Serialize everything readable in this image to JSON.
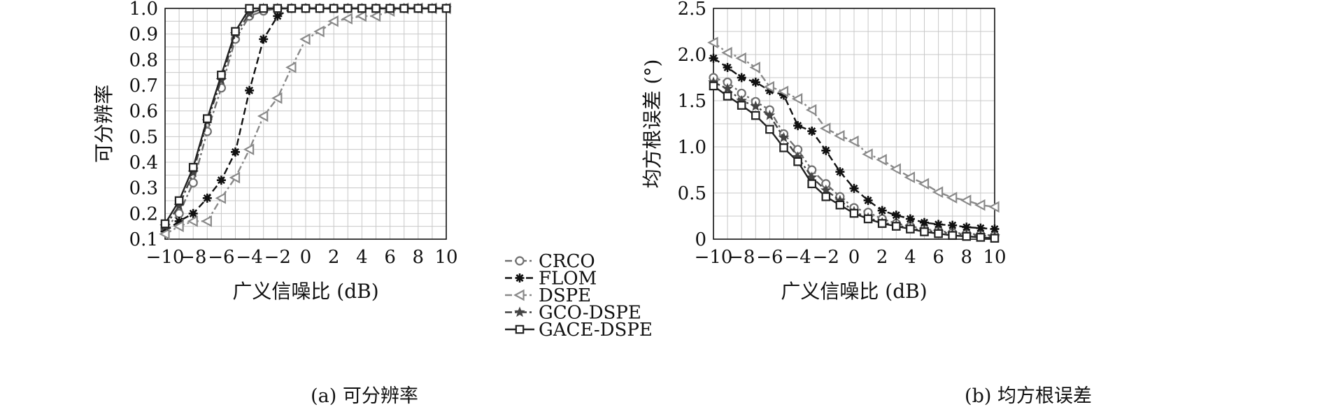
{
  "figure": {
    "caption_a": "(a) 可分辨率",
    "caption_b": "(b) 均方根误差"
  },
  "legend": {
    "entries": [
      "CRCO",
      "FLOM",
      "DSPE",
      "GCO-DSPE",
      "GACE-DSPE"
    ]
  },
  "chart_data": [
    {
      "type": "line",
      "xlabel": "广义信噪比 (dB)",
      "ylabel": "可分辨率",
      "xlim": [
        -10,
        10
      ],
      "ylim": [
        0.1,
        1.0
      ],
      "xticks": [
        -10,
        -8,
        -6,
        -4,
        -2,
        0,
        2,
        4,
        6,
        8,
        10
      ],
      "yticks": [
        0.1,
        0.2,
        0.3,
        0.4,
        0.5,
        0.6,
        0.7,
        0.8,
        0.9,
        1.0
      ],
      "xtick_labels": [
        "−10",
        "−8",
        "−6",
        "−4",
        "−2",
        "0",
        "2",
        "4",
        "6",
        "8",
        "10"
      ],
      "ytick_labels": [
        "0.1",
        "0.2",
        "0.3",
        "0.4",
        "0.5",
        "0.6",
        "0.7",
        "0.8",
        "0.9",
        "1.0"
      ],
      "grid": true,
      "x": [
        -10,
        -9,
        -8,
        -7,
        -6,
        -5,
        -4,
        -3,
        -2,
        -1,
        0,
        1,
        2,
        3,
        4,
        5,
        6,
        7,
        8,
        9,
        10
      ],
      "series": [
        {
          "name": "CRCO",
          "color": "#707070",
          "dash": "dashdot",
          "marker": "circle",
          "values": [
            0.14,
            0.2,
            0.32,
            0.52,
            0.69,
            0.88,
            0.97,
            0.99,
            1.0,
            1.0,
            1.0,
            1.0,
            1.0,
            1.0,
            1.0,
            1.0,
            1.0,
            1.0,
            1.0,
            1.0,
            1.0
          ]
        },
        {
          "name": "FLOM",
          "color": "#111111",
          "dash": "dash",
          "marker": "asterisk",
          "values": [
            0.13,
            0.17,
            0.2,
            0.26,
            0.33,
            0.44,
            0.68,
            0.88,
            0.97,
            1.0,
            1.0,
            1.0,
            1.0,
            1.0,
            1.0,
            1.0,
            1.0,
            1.0,
            1.0,
            1.0,
            1.0
          ]
        },
        {
          "name": "DSPE",
          "color": "#8a8a8a",
          "dash": "dashdot",
          "marker": "triangle-left",
          "values": [
            0.12,
            0.15,
            0.17,
            0.17,
            0.26,
            0.34,
            0.45,
            0.58,
            0.65,
            0.77,
            0.88,
            0.91,
            0.95,
            0.96,
            0.97,
            0.97,
            0.99,
            1.0,
            1.0,
            1.0,
            1.0
          ]
        },
        {
          "name": "GCO-DSPE",
          "color": "#444444",
          "dash": "dashdot",
          "marker": "star",
          "values": [
            0.15,
            0.23,
            0.36,
            0.56,
            0.72,
            0.9,
            0.98,
            1.0,
            1.0,
            1.0,
            1.0,
            1.0,
            1.0,
            1.0,
            1.0,
            1.0,
            1.0,
            1.0,
            1.0,
            1.0,
            1.0
          ]
        },
        {
          "name": "GACE-DSPE",
          "color": "#222222",
          "dash": "solid",
          "marker": "square",
          "values": [
            0.16,
            0.25,
            0.38,
            0.57,
            0.74,
            0.91,
            1.0,
            1.0,
            1.0,
            1.0,
            1.0,
            1.0,
            1.0,
            1.0,
            1.0,
            1.0,
            1.0,
            1.0,
            1.0,
            1.0,
            1.0
          ]
        }
      ]
    },
    {
      "type": "line",
      "xlabel": "广义信噪比 (dB)",
      "ylabel": "均方根误差 (°)",
      "xlim": [
        -10,
        10
      ],
      "ylim": [
        0,
        2.5
      ],
      "xticks": [
        -10,
        -8,
        -6,
        -4,
        -2,
        0,
        2,
        4,
        6,
        8,
        10
      ],
      "yticks": [
        0,
        0.5,
        1.0,
        1.5,
        2.0,
        2.5
      ],
      "xtick_labels": [
        "−10",
        "−8",
        "−6",
        "−4",
        "−2",
        "0",
        "2",
        "4",
        "6",
        "8",
        "10"
      ],
      "ytick_labels": [
        "0",
        "0.5",
        "1.0",
        "1.5",
        "2.0",
        "2.5"
      ],
      "grid": true,
      "x": [
        -10,
        -9,
        -8,
        -7,
        -6,
        -5,
        -4,
        -3,
        -2,
        -1,
        0,
        1,
        2,
        3,
        4,
        5,
        6,
        7,
        8,
        9,
        10
      ],
      "series": [
        {
          "name": "CRCO",
          "color": "#707070",
          "dash": "dashdot",
          "marker": "circle",
          "values": [
            1.75,
            1.7,
            1.58,
            1.49,
            1.4,
            1.14,
            0.97,
            0.75,
            0.6,
            0.46,
            0.34,
            0.29,
            0.22,
            0.17,
            0.14,
            0.11,
            0.09,
            0.07,
            0.06,
            0.05,
            0.04
          ]
        },
        {
          "name": "FLOM",
          "color": "#111111",
          "dash": "dash",
          "marker": "asterisk",
          "values": [
            1.96,
            1.86,
            1.75,
            1.7,
            1.61,
            1.56,
            1.23,
            1.17,
            0.96,
            0.73,
            0.55,
            0.42,
            0.31,
            0.26,
            0.22,
            0.18,
            0.16,
            0.15,
            0.13,
            0.12,
            0.11
          ]
        },
        {
          "name": "DSPE",
          "color": "#8a8a8a",
          "dash": "dashdot",
          "marker": "triangle-left",
          "values": [
            2.13,
            2.02,
            1.96,
            1.86,
            1.65,
            1.6,
            1.52,
            1.4,
            1.2,
            1.12,
            1.06,
            0.92,
            0.86,
            0.76,
            0.67,
            0.6,
            0.51,
            0.45,
            0.42,
            0.37,
            0.35
          ]
        },
        {
          "name": "GCO-DSPE",
          "color": "#444444",
          "dash": "dashdot",
          "marker": "star",
          "values": [
            1.7,
            1.63,
            1.5,
            1.44,
            1.34,
            1.1,
            0.89,
            0.67,
            0.53,
            0.42,
            0.3,
            0.23,
            0.18,
            0.15,
            0.12,
            0.09,
            0.08,
            0.06,
            0.05,
            0.04,
            0.03
          ]
        },
        {
          "name": "GACE-DSPE",
          "color": "#222222",
          "dash": "solid",
          "marker": "square",
          "values": [
            1.66,
            1.55,
            1.45,
            1.34,
            1.19,
            0.99,
            0.84,
            0.6,
            0.46,
            0.37,
            0.28,
            0.22,
            0.17,
            0.14,
            0.11,
            0.08,
            0.06,
            0.04,
            0.03,
            0.02,
            0.01
          ]
        }
      ]
    }
  ]
}
